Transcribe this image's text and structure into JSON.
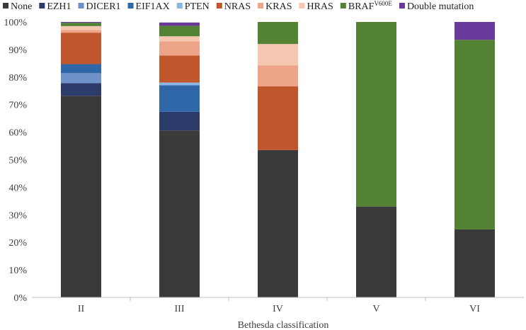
{
  "chart_data": {
    "type": "bar",
    "stacked": true,
    "percent": true,
    "title": "",
    "xlabel": "Bethesda classification",
    "ylabel": "",
    "ylim": [
      0,
      100
    ],
    "ytick_step": 10,
    "yticks": [
      "0%",
      "10%",
      "20%",
      "30%",
      "40%",
      "50%",
      "60%",
      "70%",
      "80%",
      "90%",
      "100%"
    ],
    "grid": false,
    "legend_position": "top",
    "categories": [
      "II",
      "III",
      "IV",
      "V",
      "VI"
    ],
    "series": [
      {
        "name": "None",
        "color": "#3a3a3a",
        "values": [
          73.2,
          60.6,
          53.5,
          33.0,
          24.7
        ]
      },
      {
        "name": "EZH1",
        "color": "#2b3c6b",
        "values": [
          4.6,
          6.8,
          0,
          0,
          0
        ]
      },
      {
        "name": "DICER1",
        "color": "#6d91c8",
        "values": [
          3.6,
          0,
          0,
          0,
          0
        ]
      },
      {
        "name": "EIF1AX",
        "color": "#2f67a8",
        "values": [
          3.3,
          9.6,
          0,
          0,
          0
        ]
      },
      {
        "name": "PTEN",
        "color": "#8db4e2",
        "values": [
          0,
          1.0,
          0,
          0,
          0
        ]
      },
      {
        "name": "NRAS",
        "color": "#c0562b",
        "values": [
          11.4,
          9.8,
          23.1,
          0,
          0
        ]
      },
      {
        "name": "KRAS",
        "color": "#eda488",
        "values": [
          1.0,
          5.2,
          7.6,
          0,
          0
        ]
      },
      {
        "name": "HRAS",
        "color": "#f5c6b0",
        "values": [
          1.4,
          1.8,
          7.8,
          0,
          0
        ]
      },
      {
        "name": "BRAF",
        "name_superscript": "V600E",
        "color": "#548235",
        "values": [
          1.2,
          3.8,
          8.0,
          67.0,
          68.8
        ]
      },
      {
        "name": "Double mutation",
        "color": "#6a3a9a",
        "values": [
          0.3,
          1.2,
          0,
          0,
          6.5
        ]
      }
    ]
  }
}
